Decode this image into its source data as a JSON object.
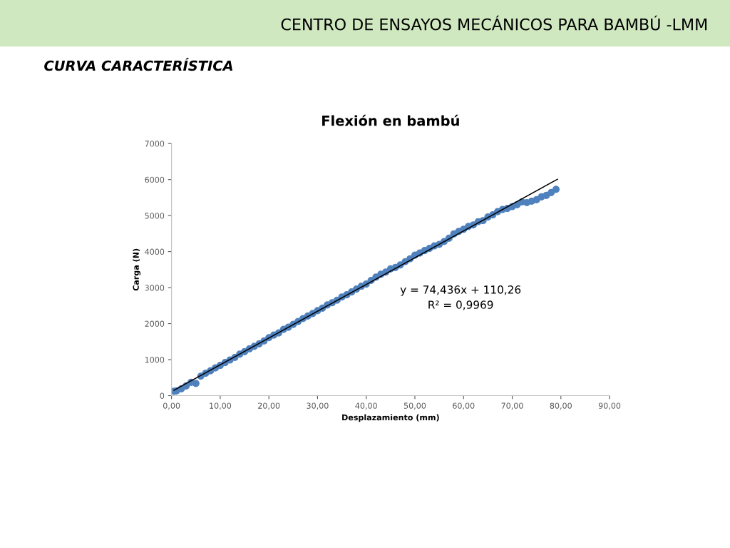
{
  "chart_data": {
    "type": "scatter",
    "title": "Flexión en bambú",
    "xlabel": "Desplazamiento (mm)",
    "ylabel": "Carga (N)",
    "annotations": [
      "CENTRO DE ENSAYOS MECÁNICOS PARA BAMBÚ -LMM",
      "CURVA CARACTERÍSTICA",
      "y = 74,436x + 110,26",
      "R² = 0,9969"
    ],
    "xlim": [
      0,
      90
    ],
    "ylim": [
      0,
      7000
    ],
    "xticks": [
      {
        "value": 0,
        "label": "0,00"
      },
      {
        "value": 10,
        "label": "10,00"
      },
      {
        "value": 20,
        "label": "20,00"
      },
      {
        "value": 30,
        "label": "30,00"
      },
      {
        "value": 40,
        "label": "40,00"
      },
      {
        "value": 50,
        "label": "50,00"
      },
      {
        "value": 60,
        "label": "60,00"
      },
      {
        "value": 70,
        "label": "70,00"
      },
      {
        "value": 80,
        "label": "80,00"
      },
      {
        "value": 90,
        "label": "90,00"
      }
    ],
    "yticks": [
      0,
      1000,
      2000,
      3000,
      4000,
      5000,
      6000,
      7000
    ],
    "grid": false,
    "legend": false,
    "series": [
      {
        "color": "#4f81bd",
        "marker": "circle",
        "x": [
          0.5,
          1,
          2,
          3,
          4,
          5,
          6,
          7,
          8,
          9,
          10,
          11,
          12,
          13,
          14,
          15,
          16,
          17,
          18,
          19,
          20,
          21,
          22,
          23,
          24,
          25,
          26,
          27,
          28,
          29,
          30,
          31,
          32,
          33,
          34,
          35,
          36,
          37,
          38,
          39,
          40,
          41,
          42,
          43,
          44,
          45,
          46,
          47,
          48,
          49,
          50,
          51,
          52,
          53,
          54,
          55,
          56,
          57,
          58,
          59,
          60,
          61,
          62,
          63,
          64,
          65,
          66,
          67,
          68,
          69,
          70,
          71,
          72,
          73,
          74,
          75,
          76,
          77,
          78,
          79
        ],
        "values": [
          120,
          130,
          190,
          270,
          370,
          340,
          540,
          620,
          690,
          770,
          840,
          920,
          990,
          1060,
          1150,
          1220,
          1300,
          1370,
          1440,
          1520,
          1610,
          1680,
          1740,
          1840,
          1900,
          1980,
          2060,
          2140,
          2210,
          2280,
          2360,
          2430,
          2520,
          2580,
          2650,
          2740,
          2800,
          2880,
          2960,
          3040,
          3100,
          3200,
          3290,
          3370,
          3430,
          3520,
          3560,
          3630,
          3720,
          3800,
          3900,
          3960,
          4030,
          4090,
          4160,
          4200,
          4280,
          4370,
          4490,
          4560,
          4620,
          4700,
          4740,
          4830,
          4860,
          4960,
          5020,
          5110,
          5170,
          5200,
          5250,
          5300,
          5380,
          5360,
          5400,
          5440,
          5520,
          5560,
          5640,
          5730
        ]
      },
      {
        "type": "line",
        "color": "#000000",
        "marker": "none",
        "x": [
          0.5,
          79.3
        ],
        "values": [
          150,
          6010
        ]
      }
    ]
  }
}
